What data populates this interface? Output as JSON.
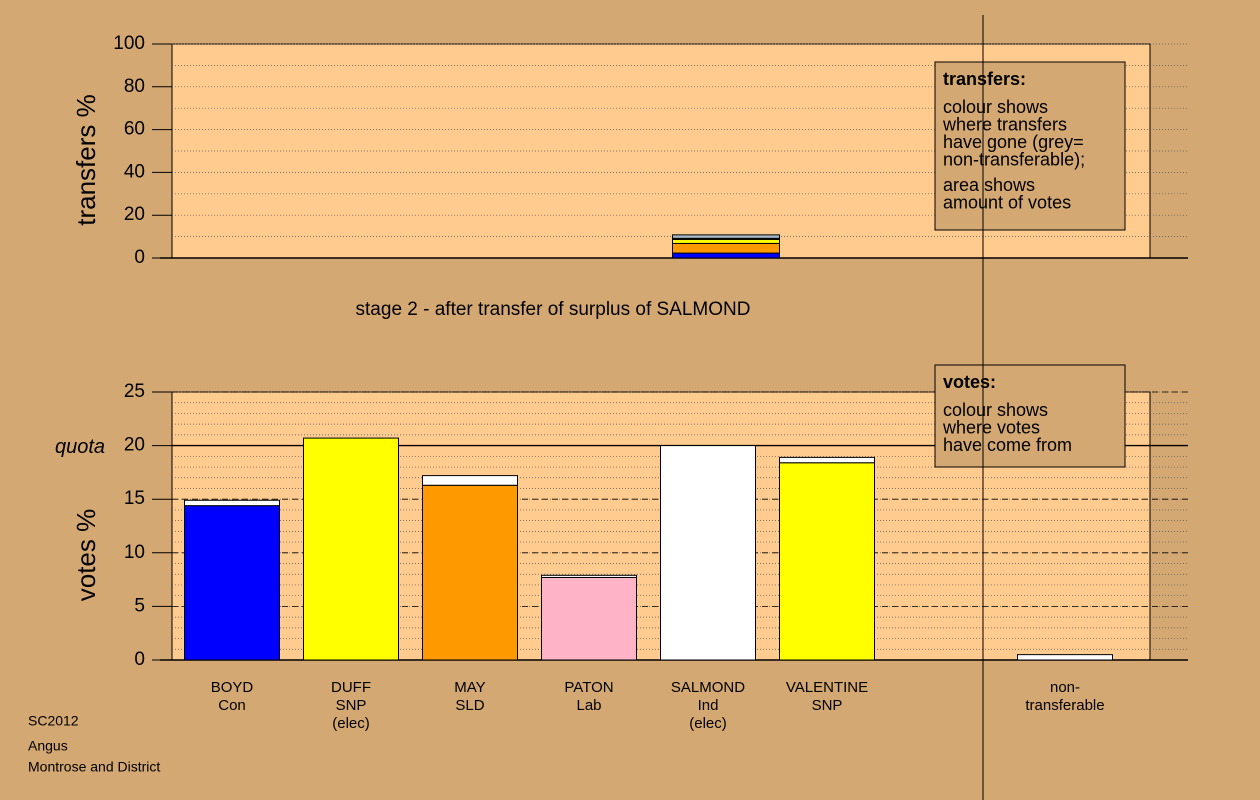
{
  "stage": "stage 2 - after transfer of surplus of SALMOND",
  "footer": [
    "SC2012",
    "Angus",
    "Montrose and District"
  ],
  "chart_data": [
    {
      "type": "bar",
      "stacked": true,
      "ylabel": "transfers %",
      "ylim": [
        0,
        100
      ],
      "yticks": [
        0,
        20,
        40,
        60,
        80,
        100
      ],
      "minor_grid": 10,
      "series": [
        {
          "color": "#0000ff",
          "values": [
            null,
            null,
            null,
            null,
            2.3,
            null,
            null,
            null
          ]
        },
        {
          "color": "#ff9900",
          "values": [
            null,
            null,
            null,
            null,
            4.5,
            null,
            null,
            null
          ]
        },
        {
          "color": "#ffff00",
          "values": [
            null,
            null,
            null,
            null,
            1.9,
            null,
            null,
            null
          ]
        },
        {
          "color": "#ffb3c6",
          "values": [
            null,
            null,
            null,
            null,
            0.5,
            null,
            null,
            null
          ]
        },
        {
          "color": "#a9bccb",
          "values": [
            null,
            null,
            null,
            null,
            1.6,
            null,
            null,
            null
          ]
        }
      ],
      "note": {
        "title": "transfers:",
        "paragraphs": [
          [
            "colour shows",
            "where transfers",
            "have gone (grey=",
            "non-transferable);"
          ],
          [
            "area shows",
            "amount of votes"
          ]
        ]
      }
    },
    {
      "type": "bar",
      "stacked": true,
      "ylabel": "votes %",
      "ylim": [
        0,
        25
      ],
      "yticks": [
        0,
        5,
        10,
        15,
        20,
        25
      ],
      "minor_grid": 1,
      "quota": {
        "value": 20,
        "label": "quota"
      },
      "categories": [
        [
          "BOYD",
          "Con"
        ],
        [
          "DUFF",
          "SNP",
          "(elec)"
        ],
        [
          "MAY",
          "SLD"
        ],
        [
          "PATON",
          "Lab"
        ],
        [
          "SALMOND",
          "Ind",
          "(elec)"
        ],
        [
          "VALENTINE",
          "SNP"
        ],
        null,
        [
          "non-",
          "transferable"
        ]
      ],
      "series": [
        {
          "colors": [
            "#0000ff",
            "#ffff00",
            "#ff9900",
            "#ffb3c6",
            "#ffffff",
            "#ffff00",
            null,
            "#ffffff"
          ],
          "values": [
            14.4,
            20.7,
            16.3,
            7.7,
            20,
            18.4,
            null,
            0.5
          ]
        },
        {
          "color": "#ffffff",
          "values": [
            0.5,
            null,
            0.9,
            0.2,
            null,
            0.5,
            null,
            null
          ]
        }
      ],
      "note": {
        "title": "votes:",
        "paragraphs": [
          [
            "colour shows",
            "where votes",
            "have come from"
          ]
        ]
      }
    }
  ]
}
